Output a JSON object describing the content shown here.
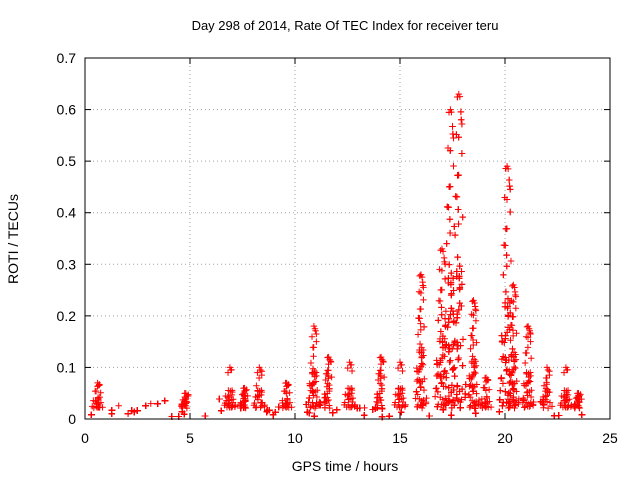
{
  "chart_data": {
    "type": "scatter",
    "title": "Day 298 of 2014, Rate Of TEC Index for receiver teru",
    "xlabel": "GPS time / hours",
    "ylabel": "ROTI / TECUs",
    "xlim": [
      0,
      25
    ],
    "ylim": [
      0,
      0.7
    ],
    "xticks": [
      0,
      5,
      10,
      15,
      20,
      25
    ],
    "yticks": [
      0,
      0.1,
      0.2,
      0.3,
      0.4,
      0.5,
      0.6,
      0.7
    ],
    "xtick_labels": [
      "0",
      "5",
      "10",
      "15",
      "20",
      "25"
    ],
    "ytick_labels": [
      "0",
      "0.1",
      "0.2",
      "0.3",
      "0.4",
      "0.5",
      "0.6",
      "0.7"
    ],
    "grid": true,
    "marker": "+",
    "color": "#ff0000",
    "data_extent_hours": [
      0,
      23.8
    ],
    "background_level": [
      0.0,
      0.035
    ],
    "peaks": [
      {
        "x": 0.6,
        "y": 0.07
      },
      {
        "x": 4.8,
        "y": 0.05
      },
      {
        "x": 6.9,
        "y": 0.1
      },
      {
        "x": 7.6,
        "y": 0.06
      },
      {
        "x": 8.3,
        "y": 0.1
      },
      {
        "x": 9.6,
        "y": 0.07
      },
      {
        "x": 10.9,
        "y": 0.18
      },
      {
        "x": 11.6,
        "y": 0.12
      },
      {
        "x": 12.6,
        "y": 0.11
      },
      {
        "x": 14.1,
        "y": 0.12
      },
      {
        "x": 15.0,
        "y": 0.11
      },
      {
        "x": 16.0,
        "y": 0.28
      },
      {
        "x": 17.0,
        "y": 0.33
      },
      {
        "x": 17.4,
        "y": 0.6
      },
      {
        "x": 17.8,
        "y": 0.63
      },
      {
        "x": 18.5,
        "y": 0.23
      },
      {
        "x": 19.1,
        "y": 0.08
      },
      {
        "x": 20.1,
        "y": 0.49
      },
      {
        "x": 20.4,
        "y": 0.26
      },
      {
        "x": 21.1,
        "y": 0.18
      },
      {
        "x": 22.0,
        "y": 0.1
      },
      {
        "x": 22.9,
        "y": 0.1
      },
      {
        "x": 23.5,
        "y": 0.05
      }
    ]
  }
}
